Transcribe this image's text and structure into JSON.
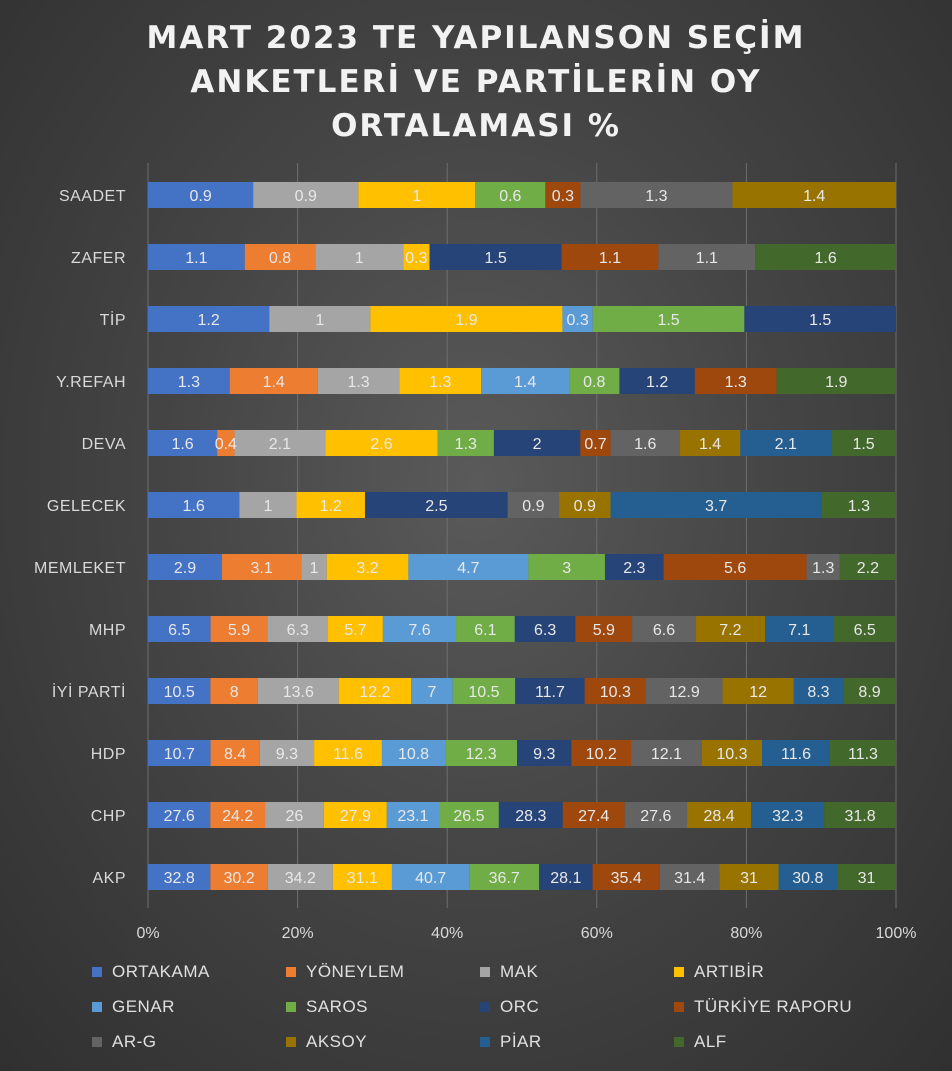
{
  "chart_data": {
    "type": "bar",
    "orientation": "horizontal",
    "stacking": "percent",
    "title": "MART 2023 TE YAPILANSON SEÇİM ANKETLERİ VE PARTİLERİN OY ORTALAMASI %",
    "categories": [
      "SAADET",
      "ZAFER",
      "TİP",
      "Y.REFAH",
      "DEVA",
      "GELECEK",
      "MEMLEKET",
      "MHP",
      "İYİ PARTİ",
      "HDP",
      "CHP",
      "AKP"
    ],
    "x_ticks": [
      "0%",
      "20%",
      "40%",
      "60%",
      "80%",
      "100%"
    ],
    "xlim": [
      0,
      100
    ],
    "legend_position": "bottom",
    "grid": true,
    "series": [
      {
        "name": "ORTAKAMA",
        "color": "#4472C4",
        "values": [
          0.9,
          1.1,
          1.2,
          1.3,
          1.6,
          1.6,
          2.9,
          6.5,
          10.5,
          10.7,
          27.6,
          32.8
        ]
      },
      {
        "name": "YÖNEYLEM",
        "color": "#ED7D31",
        "values": [
          null,
          0.8,
          null,
          1.4,
          0.4,
          null,
          3.1,
          5.9,
          8,
          8.4,
          24.2,
          30.2
        ]
      },
      {
        "name": "MAK",
        "color": "#A5A5A5",
        "values": [
          0.9,
          1,
          1,
          1.3,
          2.1,
          1,
          1,
          6.3,
          13.6,
          9.3,
          26,
          34.2
        ]
      },
      {
        "name": "ARTIBİR",
        "color": "#FFC000",
        "values": [
          1,
          0.3,
          1.9,
          1.3,
          2.6,
          1.2,
          3.2,
          5.7,
          12.2,
          11.6,
          27.9,
          31.1
        ]
      },
      {
        "name": "GENAR",
        "color": "#5B9BD5",
        "values": [
          null,
          null,
          0.3,
          1.4,
          null,
          null,
          4.7,
          7.6,
          7,
          10.8,
          23.1,
          40.7
        ]
      },
      {
        "name": "SAROS",
        "color": "#70AD47",
        "values": [
          0.6,
          null,
          1.5,
          0.8,
          1.3,
          null,
          3,
          6.1,
          10.5,
          12.3,
          26.5,
          36.7
        ]
      },
      {
        "name": "ORC",
        "color": "#264478",
        "values": [
          null,
          1.5,
          1.5,
          1.2,
          2,
          2.5,
          2.3,
          6.3,
          11.7,
          9.3,
          28.3,
          28.1
        ]
      },
      {
        "name": "TÜRKİYE RAPORU",
        "color": "#9E480E",
        "values": [
          0.3,
          1.1,
          null,
          1.3,
          0.7,
          null,
          5.6,
          5.9,
          10.3,
          10.2,
          27.4,
          35.4
        ]
      },
      {
        "name": "AR-G",
        "color": "#636363",
        "values": [
          1.3,
          1.1,
          null,
          null,
          1.6,
          0.9,
          1.3,
          6.6,
          12.9,
          12.1,
          27.6,
          31.4
        ]
      },
      {
        "name": "AKSOY",
        "color": "#997300",
        "values": [
          1.4,
          null,
          null,
          null,
          1.4,
          0.9,
          null,
          7.2,
          12,
          10.3,
          28.4,
          31
        ]
      },
      {
        "name": "PİAR",
        "color": "#255E91",
        "values": [
          null,
          null,
          null,
          null,
          2.1,
          3.7,
          null,
          7.1,
          8.3,
          11.6,
          32.3,
          30.8
        ]
      },
      {
        "name": "ALF",
        "color": "#43682B",
        "values": [
          null,
          1.6,
          null,
          1.9,
          1.5,
          1.3,
          2.2,
          6.5,
          8.9,
          11.3,
          31.8,
          31
        ]
      }
    ]
  }
}
